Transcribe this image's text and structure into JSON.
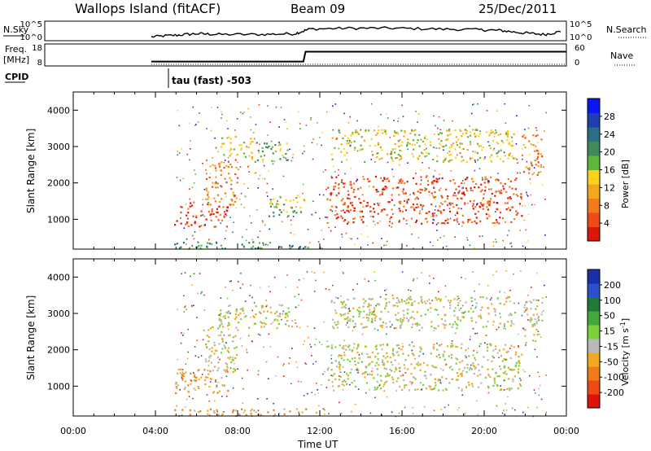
{
  "header": {
    "station": "Wallops Island (fitACF)",
    "beam": "Beam 09",
    "date": "25/Dec/2011"
  },
  "summary_panels": {
    "nsky_label": "N.Sky",
    "nsky_ticks": [
      "10^5",
      "10^0"
    ],
    "nsearch_label": "N.Search",
    "nsearch_ticks": [
      "10^5",
      "10^0"
    ],
    "freq_label_1": "Freq.",
    "freq_label_2": "[MHz]",
    "freq_ticks": [
      "18",
      "8"
    ],
    "nave_label": "Nave",
    "nave_ticks": [
      "60",
      "0"
    ],
    "cpid_label": "CPID",
    "cpid_text": "tau (fast) -503"
  },
  "colors": {
    "power": [
      "#0a14f5",
      "#1f3fb0",
      "#2a6e8a",
      "#3e8a5a",
      "#5cb83a",
      "#ffd21a",
      "#f5a71a",
      "#f47a1a",
      "#f04a1a",
      "#e0150a"
    ],
    "velocity": [
      "#1a2ea8",
      "#2c4fd0",
      "#1f7a3a",
      "#45a83a",
      "#7dd13a",
      "#b9b9b9",
      "#f2a81f",
      "#f27a1a",
      "#ef4a16",
      "#e0100a"
    ]
  },
  "chart_data": [
    {
      "type": "line",
      "title": "N.Sky / N.Search",
      "x_unit": "hours UT",
      "x": [
        4.9,
        6,
        7,
        8,
        10,
        11.5,
        12.2,
        14,
        16,
        18,
        20,
        21,
        22,
        23,
        23.8
      ],
      "series": [
        {
          "name": "N.Sky",
          "values": [
            0.5,
            0.7,
            0.9,
            0.8,
            0.8,
            0.9,
            1.5,
            1.6,
            1.6,
            1.5,
            1.4,
            1.3,
            1.0,
            0.8,
            1.2
          ]
        }
      ]
    },
    {
      "type": "line",
      "title": "Freq. [MHz] / Nave",
      "x_unit": "hours UT",
      "x": [
        4.9,
        5.0,
        11.9,
        12.0,
        24.0
      ],
      "series": [
        {
          "name": "Freq.",
          "values": [
            10,
            10,
            10,
            14.5,
            14.5
          ]
        },
        {
          "name": "Nave",
          "values": [
            0,
            0,
            0,
            0,
            0
          ]
        }
      ],
      "ylim": [
        8,
        18
      ]
    },
    {
      "type": "heatmap",
      "title": "Power [dB]",
      "xlabel": "Time UT",
      "ylabel": "Slant Range [km]",
      "xlim": [
        0,
        24
      ],
      "ylim": [
        180,
        4500
      ],
      "x_ticks": [
        "00:00",
        "04:00",
        "08:00",
        "12:00",
        "16:00",
        "20:00",
        "00:00"
      ],
      "y_ticks": [
        "1000",
        "2000",
        "3000",
        "4000"
      ],
      "colorbar_label": "Power [dB]",
      "colorbar_ticks": [
        "28",
        "24",
        "20",
        "16",
        "12",
        "8",
        "4"
      ],
      "regions": [
        {
          "t0": 4.9,
          "t1": 7.5,
          "r0": 800,
          "r1": 1500,
          "level": 8
        },
        {
          "t0": 6.4,
          "t1": 8.0,
          "r0": 1400,
          "r1": 2700,
          "level": 7
        },
        {
          "t0": 7.0,
          "t1": 8.8,
          "r0": 2700,
          "r1": 3300,
          "level": 5
        },
        {
          "t0": 8.8,
          "t1": 10.5,
          "r0": 2600,
          "r1": 3200,
          "level": 4
        },
        {
          "t0": 9.5,
          "t1": 11.3,
          "r0": 1100,
          "r1": 1700,
          "level": 4
        },
        {
          "t0": 12.3,
          "t1": 21.8,
          "r0": 900,
          "r1": 2200,
          "level": 8
        },
        {
          "t0": 12.5,
          "t1": 21.5,
          "r0": 2600,
          "r1": 3500,
          "level": 5
        },
        {
          "t0": 21.8,
          "t1": 22.8,
          "r0": 2200,
          "r1": 3400,
          "level": 7
        },
        {
          "t0": 4.9,
          "t1": 12.0,
          "r0": 200,
          "r1": 400,
          "level": 3
        }
      ]
    },
    {
      "type": "heatmap",
      "title": "Velocity [m s^-1]",
      "xlabel": "Time UT",
      "ylabel": "Slant Range [km]",
      "xlim": [
        0,
        24
      ],
      "ylim": [
        180,
        4500
      ],
      "x_ticks": [
        "00:00",
        "04:00",
        "08:00",
        "12:00",
        "16:00",
        "20:00",
        "00:00"
      ],
      "y_ticks": [
        "1000",
        "2000",
        "3000",
        "4000"
      ],
      "colorbar_label": "Velocity [m s^-1]",
      "colorbar_ticks": [
        "200",
        "100",
        "50",
        "15",
        "-15",
        "-50",
        "-100",
        "-200"
      ],
      "regions": [
        {
          "t0": 4.9,
          "t1": 7.5,
          "r0": 800,
          "r1": 1500,
          "level": 6
        },
        {
          "t0": 6.4,
          "t1": 8.0,
          "r0": 1400,
          "r1": 2700,
          "level": 5
        },
        {
          "t0": 7.0,
          "t1": 10.5,
          "r0": 2600,
          "r1": 3300,
          "level": 5
        },
        {
          "t0": 12.3,
          "t1": 21.8,
          "r0": 900,
          "r1": 2200,
          "level": 5
        },
        {
          "t0": 12.5,
          "t1": 21.5,
          "r0": 2600,
          "r1": 3500,
          "level": 5
        },
        {
          "t0": 21.8,
          "t1": 22.8,
          "r0": 2200,
          "r1": 3400,
          "level": 5
        },
        {
          "t0": 4.9,
          "t1": 12.0,
          "r0": 200,
          "r1": 400,
          "level": 6
        }
      ]
    }
  ]
}
